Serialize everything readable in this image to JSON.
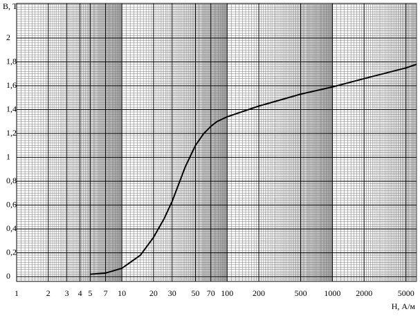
{
  "chart_data": {
    "type": "line",
    "y_label": "В, Тл",
    "x_label": "Н, А/м",
    "log_x": true,
    "grid": true,
    "xlim": [
      1,
      6300
    ],
    "ylim": [
      -0.04,
      2.29
    ],
    "xticks": [
      1,
      2,
      3,
      4,
      5,
      7,
      10,
      20,
      30,
      50,
      70,
      100,
      200,
      500,
      1000,
      2000,
      5000
    ],
    "yticks": [
      0,
      {
        "value": 0.2,
        "label": "0,2"
      },
      {
        "value": 0.4,
        "label": "0,4"
      },
      {
        "value": 0.6,
        "label": "0,6"
      },
      {
        "value": 0.8,
        "label": "0,8"
      },
      1,
      {
        "value": 1.2,
        "label": "1,2"
      },
      {
        "value": 1.4,
        "label": "1,4"
      },
      {
        "value": 1.6,
        "label": "1,6"
      },
      {
        "value": 1.8,
        "label": "1,8"
      },
      2
    ],
    "series": [
      {
        "color": "#000000",
        "x": [
          5,
          7,
          10,
          15,
          20,
          25,
          30,
          40,
          50,
          60,
          70,
          80,
          100,
          200,
          500,
          1000,
          2000,
          5000,
          6300
        ],
        "values": [
          0.02,
          0.03,
          0.07,
          0.18,
          0.33,
          0.48,
          0.63,
          0.92,
          1.1,
          1.2,
          1.26,
          1.3,
          1.34,
          1.43,
          1.53,
          1.59,
          1.66,
          1.75,
          1.78
        ]
      }
    ]
  }
}
